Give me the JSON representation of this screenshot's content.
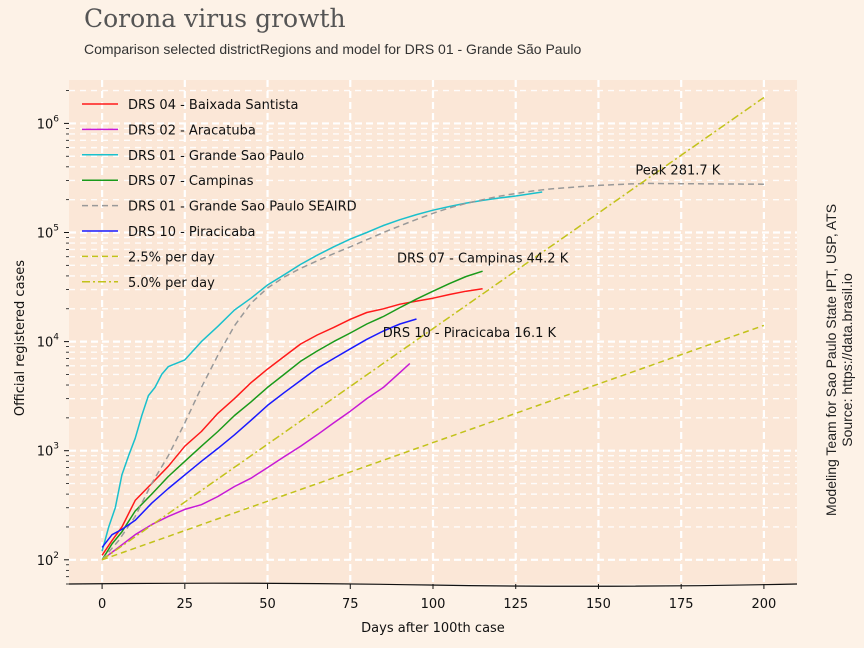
{
  "chart_data": {
    "type": "line",
    "title": "Corona virus growth",
    "subtitle": "Comparison selected districtRegions and model for DRS 01 - Grande São Paulo",
    "xlabel": "Days after 100th case",
    "ylabel": "Official registered cases",
    "xlim": [
      -10,
      210
    ],
    "ylim": [
      60,
      2500000
    ],
    "yscale": "log",
    "grid": true,
    "legend_position": "top-left",
    "credit_lines": [
      "Modeling Team for Sao Paulo State IPT, USP, ATS",
      "Source: https://data.brasil.io"
    ],
    "x_ticks": [
      0,
      25,
      50,
      75,
      100,
      125,
      150,
      175,
      200
    ],
    "x_tick_labels": [
      "0",
      "25",
      "50",
      "75",
      "100",
      "125",
      "150",
      "175",
      "200"
    ],
    "y_ticks": [
      100,
      1000,
      10000,
      100000,
      1000000
    ],
    "y_tick_labels": [
      {
        "base": "10",
        "exp": "2"
      },
      {
        "base": "10",
        "exp": "3"
      },
      {
        "base": "10",
        "exp": "4"
      },
      {
        "base": "10",
        "exp": "5"
      },
      {
        "base": "10",
        "exp": "6"
      }
    ],
    "series": [
      {
        "name": "DRS 04 - Baixada Santista",
        "color": "#ff1a1a",
        "style": "solid",
        "x": [
          0,
          3,
          6,
          10,
          15,
          20,
          25,
          30,
          35,
          40,
          45,
          50,
          55,
          60,
          65,
          70,
          75,
          80,
          85,
          90,
          95,
          100,
          105,
          110,
          115
        ],
        "y": [
          110,
          150,
          200,
          350,
          500,
          720,
          1100,
          1500,
          2200,
          3000,
          4200,
          5600,
          7300,
          9500,
          11500,
          13500,
          16000,
          18500,
          20000,
          22000,
          23500,
          25000,
          27000,
          29000,
          30500
        ]
      },
      {
        "name": "DRS 02 - Aracatuba",
        "color": "#c71ad6",
        "style": "solid",
        "x": [
          0,
          5,
          10,
          15,
          20,
          25,
          30,
          35,
          40,
          45,
          50,
          55,
          60,
          65,
          70,
          75,
          80,
          85,
          90,
          93
        ],
        "y": [
          100,
          130,
          170,
          210,
          250,
          290,
          320,
          380,
          470,
          560,
          700,
          880,
          1100,
          1400,
          1800,
          2300,
          3000,
          3800,
          5200,
          6300
        ]
      },
      {
        "name": "DRS 01 - Grande Sao Paulo",
        "color": "#1ac0cc",
        "style": "solid",
        "x": [
          0,
          2,
          4,
          6,
          8,
          10,
          12,
          14,
          16,
          18,
          20,
          25,
          30,
          35,
          40,
          45,
          50,
          55,
          60,
          65,
          70,
          75,
          80,
          85,
          90,
          95,
          100,
          105,
          110,
          115,
          120,
          125,
          130,
          133
        ],
        "y": [
          120,
          200,
          300,
          600,
          900,
          1300,
          2100,
          3200,
          3800,
          5000,
          5900,
          6800,
          10000,
          13800,
          19500,
          25000,
          33000,
          41000,
          51000,
          62000,
          74000,
          87000,
          100000,
          116000,
          131000,
          146000,
          160000,
          173000,
          186000,
          197000,
          207000,
          216000,
          228000,
          235000
        ]
      },
      {
        "name": "DRS 07 - Campinas",
        "color": "#1a9a1a",
        "style": "solid",
        "x": [
          0,
          3,
          6,
          10,
          15,
          20,
          25,
          30,
          35,
          40,
          45,
          50,
          55,
          60,
          65,
          70,
          75,
          80,
          85,
          90,
          95,
          100,
          105,
          110,
          115
        ],
        "y": [
          100,
          140,
          180,
          280,
          400,
          580,
          800,
          1100,
          1500,
          2100,
          2800,
          3800,
          5000,
          6600,
          8200,
          10000,
          12000,
          14500,
          17000,
          20500,
          24500,
          29000,
          34000,
          39500,
          44200
        ]
      },
      {
        "name": "DRS 01 - Grande Sao Paulo SEAIRD",
        "color": "#999999",
        "style": "dashed",
        "x": [
          0,
          5,
          10,
          15,
          20,
          25,
          30,
          35,
          40,
          45,
          50,
          55,
          60,
          65,
          70,
          75,
          80,
          85,
          90,
          95,
          100,
          105,
          110,
          115,
          120,
          125,
          130,
          135,
          140,
          145,
          150,
          155,
          160,
          165,
          170,
          175,
          180,
          185,
          190,
          195,
          200
        ],
        "y": [
          100,
          150,
          250,
          500,
          900,
          1800,
          3800,
          7500,
          14000,
          22500,
          31000,
          39000,
          47000,
          55000,
          64000,
          74000,
          86000,
          100000,
          115000,
          132000,
          150000,
          168000,
          185000,
          200000,
          215000,
          228000,
          240000,
          250000,
          257000,
          264000,
          270000,
          275000,
          279000,
          281700,
          281000,
          280000,
          279500,
          279000,
          278500,
          278000,
          277500
        ]
      },
      {
        "name": "DRS 10 - Piracicaba",
        "color": "#1a1aff",
        "style": "solid",
        "x": [
          0,
          3,
          6,
          10,
          15,
          20,
          25,
          30,
          35,
          40,
          45,
          50,
          55,
          60,
          65,
          70,
          75,
          80,
          85,
          90,
          95
        ],
        "y": [
          130,
          170,
          190,
          230,
          330,
          450,
          600,
          800,
          1050,
          1400,
          1900,
          2600,
          3400,
          4400,
          5700,
          7000,
          8600,
          10500,
          12500,
          14500,
          16100
        ]
      },
      {
        "name": "2.5% per day",
        "color": "#c2c21a",
        "style": "dashed",
        "x": [
          0,
          20,
          40,
          60,
          80,
          100,
          120,
          140,
          160,
          180,
          200
        ],
        "y": [
          100,
          164,
          269,
          441,
          723,
          1186,
          1945,
          3190,
          5233,
          8583,
          14079
        ]
      },
      {
        "name": "5.0% per day",
        "color": "#c2c21a",
        "style": "dashdot",
        "x": [
          0,
          20,
          40,
          60,
          80,
          100,
          120,
          140,
          160,
          180,
          200
        ],
        "y": [
          100,
          265,
          704,
          1868,
          4956,
          13150,
          34891,
          92576,
          245633,
          651743,
          1729258
        ]
      }
    ],
    "annotations": [
      {
        "text": "Peak 281.7 K",
        "x": 174,
        "y": 340000
      },
      {
        "text": "DRS 07 - Campinas 44.2 K",
        "x": 115,
        "y": 53000
      },
      {
        "text": "DRS 10 - Piracicaba 16.1 K",
        "x": 111,
        "y": 11000
      }
    ]
  }
}
